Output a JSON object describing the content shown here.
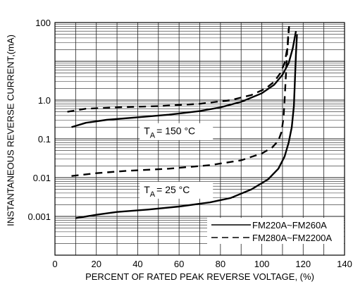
{
  "chart_data": {
    "type": "line",
    "title": "",
    "xlabel": "PERCENT OF RATED PEAK REVERSE VOLTAGE, (%)",
    "ylabel": "INSTANTANEOUS REVERSE CURRENT,(mA)",
    "xlim": [
      0,
      140
    ],
    "ylim": [
      0.0001,
      100
    ],
    "yscale": "log",
    "grid": true,
    "x_ticks": [
      "0",
      "20",
      "40",
      "60",
      "80",
      "100",
      "120",
      "140"
    ],
    "y_ticks": [
      "0.001",
      "0.01",
      "0.1",
      "1.0",
      "100"
    ],
    "legend_position": "bottom-right",
    "legend": [
      {
        "label": "FM220A~FM260A",
        "style": "solid"
      },
      {
        "label": "FM280A~FM2200A",
        "style": "dashed"
      }
    ],
    "annotations": [
      {
        "main": "T",
        "sub": "A",
        "rest": "= 150 °C",
        "x": 43,
        "y": 0.13
      },
      {
        "main": "T",
        "sub": "A",
        "rest": "=  25 °C",
        "x": 43,
        "y": 0.004
      }
    ],
    "series": [
      {
        "group": "FM220A~FM260A",
        "condition": "TA = 150 °C",
        "style": "solid",
        "x": [
          8,
          15,
          25,
          40,
          55,
          70,
          80,
          90,
          100,
          106,
          110,
          113,
          115,
          116.5
        ],
        "y": [
          0.2,
          0.26,
          0.31,
          0.36,
          0.42,
          0.52,
          0.65,
          0.9,
          1.5,
          2.5,
          4.5,
          9,
          22,
          60
        ]
      },
      {
        "group": "FM280A~FM2200A",
        "condition": "TA = 150 °C",
        "style": "dashed",
        "x": [
          6,
          15,
          30,
          50,
          70,
          85,
          95,
          102,
          106,
          109,
          111,
          112.5,
          113.2
        ],
        "y": [
          0.5,
          0.6,
          0.65,
          0.7,
          0.8,
          1.0,
          1.35,
          2.0,
          3.0,
          5.0,
          9.0,
          25,
          80
        ]
      },
      {
        "group": "FM220A~FM260A",
        "condition": "TA = 25 °C",
        "style": "solid",
        "x": [
          10,
          20,
          30,
          45,
          60,
          75,
          85,
          95,
          103,
          108,
          111,
          113,
          114.5,
          115.5,
          116,
          116.5,
          117
        ],
        "y": [
          0.0009,
          0.0011,
          0.0013,
          0.0015,
          0.0018,
          0.0023,
          0.003,
          0.005,
          0.009,
          0.017,
          0.035,
          0.08,
          0.2,
          0.7,
          3.0,
          15,
          50
        ]
      },
      {
        "group": "FM280A~FM2200A",
        "condition": "TA = 25 °C",
        "style": "dashed",
        "x": [
          8,
          20,
          35,
          55,
          75,
          90,
          100,
          105,
          108,
          109.5,
          110.5,
          111,
          111.5,
          112,
          112.5,
          113
        ],
        "y": [
          0.011,
          0.013,
          0.015,
          0.017,
          0.021,
          0.028,
          0.042,
          0.06,
          0.09,
          0.15,
          0.35,
          1.0,
          3.0,
          10,
          30,
          70
        ]
      }
    ]
  }
}
